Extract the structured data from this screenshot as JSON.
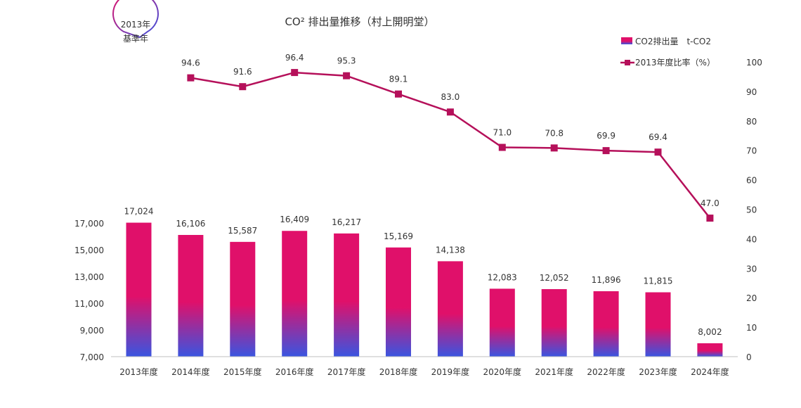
{
  "chart_data": {
    "type": "bar",
    "title": "CO² 排出量推移（村上開明堂）",
    "categories": [
      "2013年度",
      "2014年度",
      "2015年度",
      "2016年度",
      "2017年度",
      "2018年度",
      "2019年度",
      "2020年度",
      "2021年度",
      "2022年度",
      "2023年度",
      "2024年度"
    ],
    "series": [
      {
        "name": "CO2排出量　t-CO2",
        "type": "bar",
        "axis": "left",
        "values": [
          17024,
          16106,
          15587,
          16409,
          16217,
          15169,
          14138,
          12083,
          12052,
          11896,
          11815,
          8002
        ],
        "labels": [
          "17,024",
          "16,106",
          "15,587",
          "16,409",
          "16,217",
          "15,169",
          "14,138",
          "12,083",
          "12,052",
          "11,896",
          "11,815",
          "8,002"
        ]
      },
      {
        "name": "2013年度比率（%）",
        "type": "line",
        "axis": "right",
        "values": [
          null,
          94.6,
          91.6,
          96.4,
          95.3,
          89.1,
          83.0,
          71.0,
          70.8,
          69.9,
          69.4,
          47.0
        ],
        "labels": [
          "",
          "94.6",
          "91.6",
          "96.4",
          "95.3",
          "89.1",
          "83.0",
          "71.0",
          "70.8",
          "69.9",
          "69.4",
          "47.0"
        ]
      }
    ],
    "y_left": {
      "range": [
        7000,
        18000
      ],
      "ticks": [
        7000,
        9000,
        11000,
        13000,
        15000,
        17000
      ],
      "tick_labels": [
        "7,000",
        "9,000",
        "11,000",
        "13,000",
        "15,000",
        "17,000"
      ]
    },
    "y_right": {
      "range": [
        0,
        100
      ],
      "ticks": [
        0,
        10,
        20,
        30,
        40,
        50,
        60,
        70,
        80,
        90,
        100
      ],
      "tick_labels": [
        "0",
        "10",
        "20",
        "30",
        "40",
        "50",
        "60",
        "70",
        "80",
        "90",
        "100"
      ]
    },
    "annotation": {
      "line1": "2013年",
      "line2": "基準年"
    },
    "legend_position": "top-right",
    "colors": {
      "bar_top": "#e0106a",
      "bar_bottom": "#3a55e0",
      "line": "#b5105a",
      "callout_start": "#e0106a",
      "callout_end": "#3a55e0"
    },
    "grid": false
  }
}
